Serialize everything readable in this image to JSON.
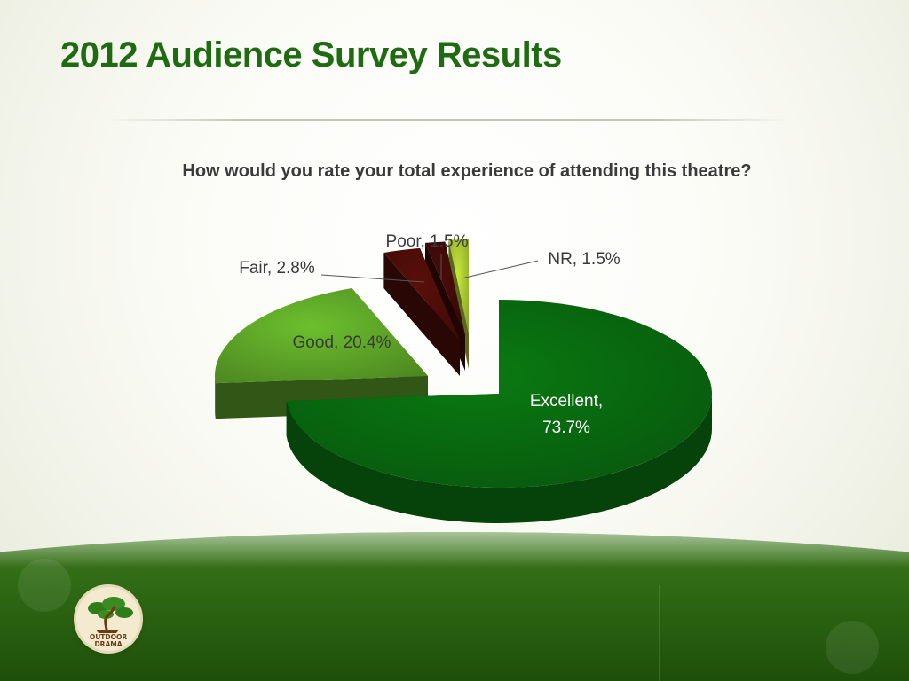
{
  "slide": {
    "title": "2012 Audience Survey Results"
  },
  "chart_data": {
    "type": "pie",
    "title": "How would you rate your total experience of attending this theatre?",
    "categories": [
      "Excellent",
      "Good",
      "Fair",
      "Poor",
      "NR"
    ],
    "values": [
      73.7,
      20.4,
      2.8,
      1.5,
      1.5
    ],
    "labels": [
      "Excellent, 73.7%",
      "Good, 20.4%",
      "Fair, 2.8%",
      "Poor, 1.5%",
      "NR, 1.5%"
    ],
    "unit": "%",
    "style": "3d-exploded",
    "colors": [
      "#0a7a12",
      "#6cbf2e",
      "#5a0f0a",
      "#4a0c08",
      "#c6e83a"
    ],
    "legend": "none"
  },
  "logo": {
    "icon": "bonsai-tree-icon",
    "text_line1": "OUTDOOR",
    "text_line2": "DRAMA"
  },
  "colors": {
    "title": "#1f6b12",
    "footer": "#2f6a14"
  }
}
